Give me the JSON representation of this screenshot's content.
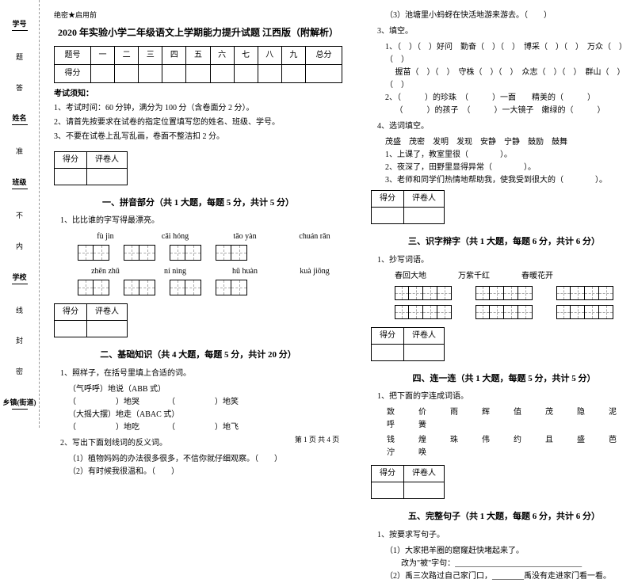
{
  "binding": {
    "labels": [
      {
        "key": "学号",
        "val": ""
      },
      {
        "key": "姓名",
        "val": ""
      },
      {
        "key": "班级",
        "val": ""
      },
      {
        "key": "学校",
        "val": ""
      },
      {
        "key": "乡镇(街道)",
        "val": ""
      }
    ],
    "chars": [
      "题",
      "答",
      "准",
      "不",
      "内",
      "线",
      "封",
      "密"
    ]
  },
  "header_small": "绝密★启用前",
  "title": "2020 年实验小学二年级语文上学期能力提升试题 江西版（附解析）",
  "score_table": {
    "cols": [
      "题号",
      "一",
      "二",
      "三",
      "四",
      "五",
      "六",
      "七",
      "八",
      "九",
      "总分"
    ],
    "rows": [
      [
        "得分",
        "",
        "",
        "",
        "",
        "",
        "",
        "",
        "",
        "",
        ""
      ]
    ]
  },
  "notice_title": "考试须知：",
  "notice": [
    "1、考试时间：60 分钟，满分为 100 分（含卷面分 2 分）。",
    "2、请首先按要求在试卷的指定位置填写您的姓名、班级、学号。",
    "3、不要在试卷上乱写乱画，卷面不整洁扣 2 分。"
  ],
  "scorebox_cols": [
    "得分",
    "评卷人"
  ],
  "sections": {
    "s1": {
      "title": "一、拼音部分（共 1 大题，每题 5 分，共计 5 分）",
      "q": "1、比比谁的字写得最漂亮。"
    },
    "s2": {
      "title": "二、基础知识（共 4 大题，每题 5 分，共计 20 分）"
    },
    "s3": {
      "title": "三、识字辩字（共 1 大题，每题 6 分，共计 6 分）",
      "q": "1、抄写词语。"
    },
    "s4": {
      "title": "四、连一连（共 1 大题，每题 5 分，共计 5 分）",
      "q": "1、把下面的字连成词语。"
    },
    "s5": {
      "title": "五、完整句子（共 1 大题，每题 6 分，共计 6 分）",
      "q": "1、按要求写句子。"
    }
  },
  "pinyin": [
    [
      "fù  jìn",
      "cǎi  hóng",
      "tǎo  yàn",
      "chuán  rǎn"
    ],
    [
      "zhēn  zhū",
      "ní  nìng",
      "hū  huàn",
      "kuà  jiōng"
    ]
  ],
  "q2_1": {
    "stem": "1、照样子，在括号里填上合适的词。",
    "lines": [
      "（气呼呼）地说（ABB 式）",
      "（　　　　　）地哭　　　　（　　　　　）地笑",
      "（大摇大摆）地走（ABAC 式）",
      "（　　　　　）地吃　　　　（　　　　　）地飞"
    ]
  },
  "q2_2": {
    "stem": "2、写出下面划线词的反义词。",
    "lines": [
      "（1）植物妈妈的办法很多很多，不信你就仔细观察。（　　）",
      "（2）有时候我很温和。（　　）",
      "（3）池塘里小蚂蚜在快活地游来游去。（　　）"
    ]
  },
  "q2_3": {
    "stem": "3、填空。",
    "lines": [
      "1、（　）（　）好问　勤奋（　）（　）　博采（　）（　）　万众（　）（　）",
      "　 握苗（　）（　）　守株（　）（　）　众志（　）（　）　群山（　）（　）",
      "2、（　　　）的珍珠　（　　　）一面　　精美的（　　　）",
      "　 （　　　）的孩子　（　　　）一大镜子　嫩绿的（　　　）"
    ]
  },
  "q2_4": {
    "stem": "4、选词填空。",
    "opts": "茂盛　茂密　发明　发现　安静　宁静　鼓励　鼓舞",
    "lines": [
      "1、上课了，教室里很（　　　　）。",
      "2、夜深了，田野里显得异常（　　　　）。",
      "3、老师和同学们热情地帮助我，使我受到很大的（　　　　）。"
    ]
  },
  "s3_words": [
    "春回大地",
    "万紫千红",
    "春暖花开"
  ],
  "s4_rows": [
    "致　价　雨　辉　值　茂　隐　泥　呼　簧",
    "钱　煌　珠　伟　约　且　盛　芭　泞　唤"
  ],
  "s5_lines": [
    "（1）大家把羊圈的窟窿赶快堵起来了。",
    "　　改为\"被\"字句：________________________________",
    "（2）禹三次路过自己家门口，________禹没有走进家门看一看。"
  ],
  "footer": "第 1 页  共 4 页"
}
